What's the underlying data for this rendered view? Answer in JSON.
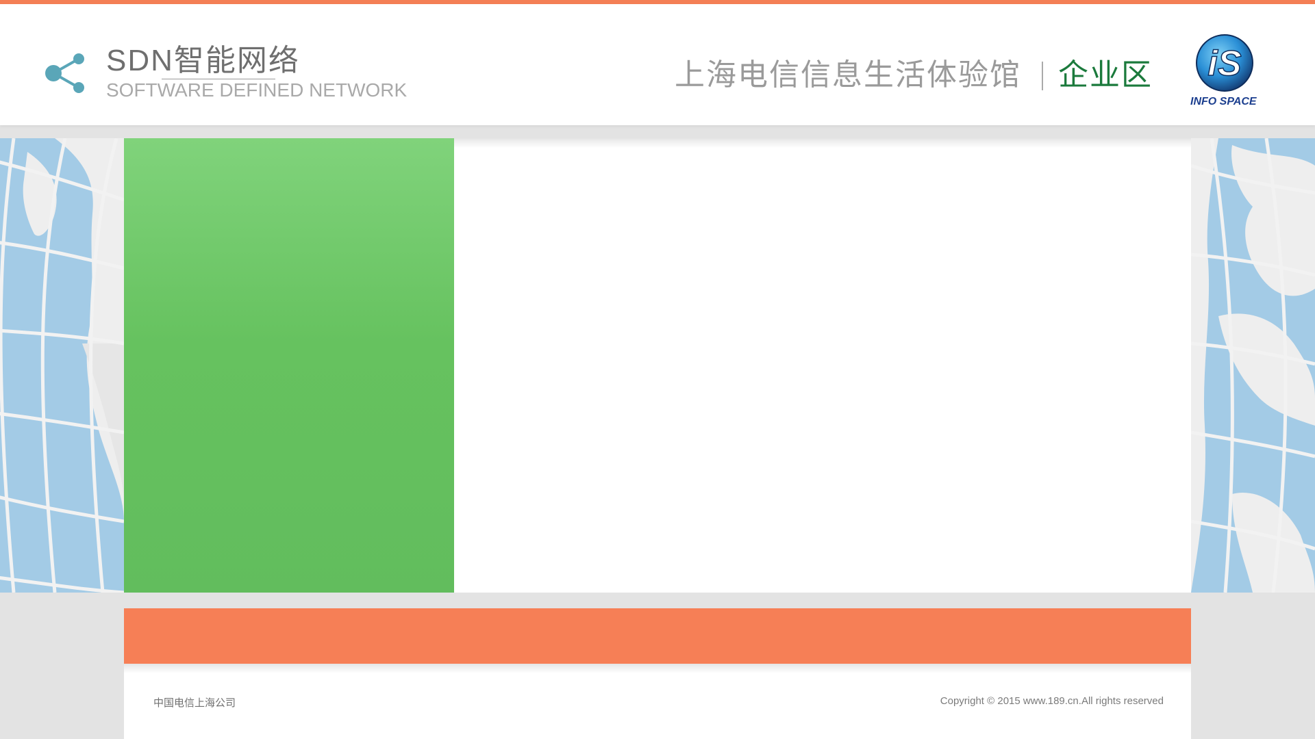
{
  "header": {
    "brand_title": "SDN智能网络",
    "brand_subtitle": "SOFTWARE DEFINED NETWORK",
    "venue_title": "上海电信信息生活体验馆",
    "zone_label": "企业区",
    "logo_caption": "INFO SPACE",
    "logo_text": "iS"
  },
  "footer": {
    "company": "中国电信上海公司",
    "copyright": "Copyright © 2015 www.189.cn.All rights reserved"
  },
  "icons": {
    "share": "share-icon",
    "logo": "info-space-logo"
  },
  "colors": {
    "accent_orange": "#f67f56",
    "panel_green": "#66c25f",
    "zone_green": "#1b7a3c",
    "map_blue": "#a3cbe6",
    "logo_blue": "#2a8fd6"
  }
}
